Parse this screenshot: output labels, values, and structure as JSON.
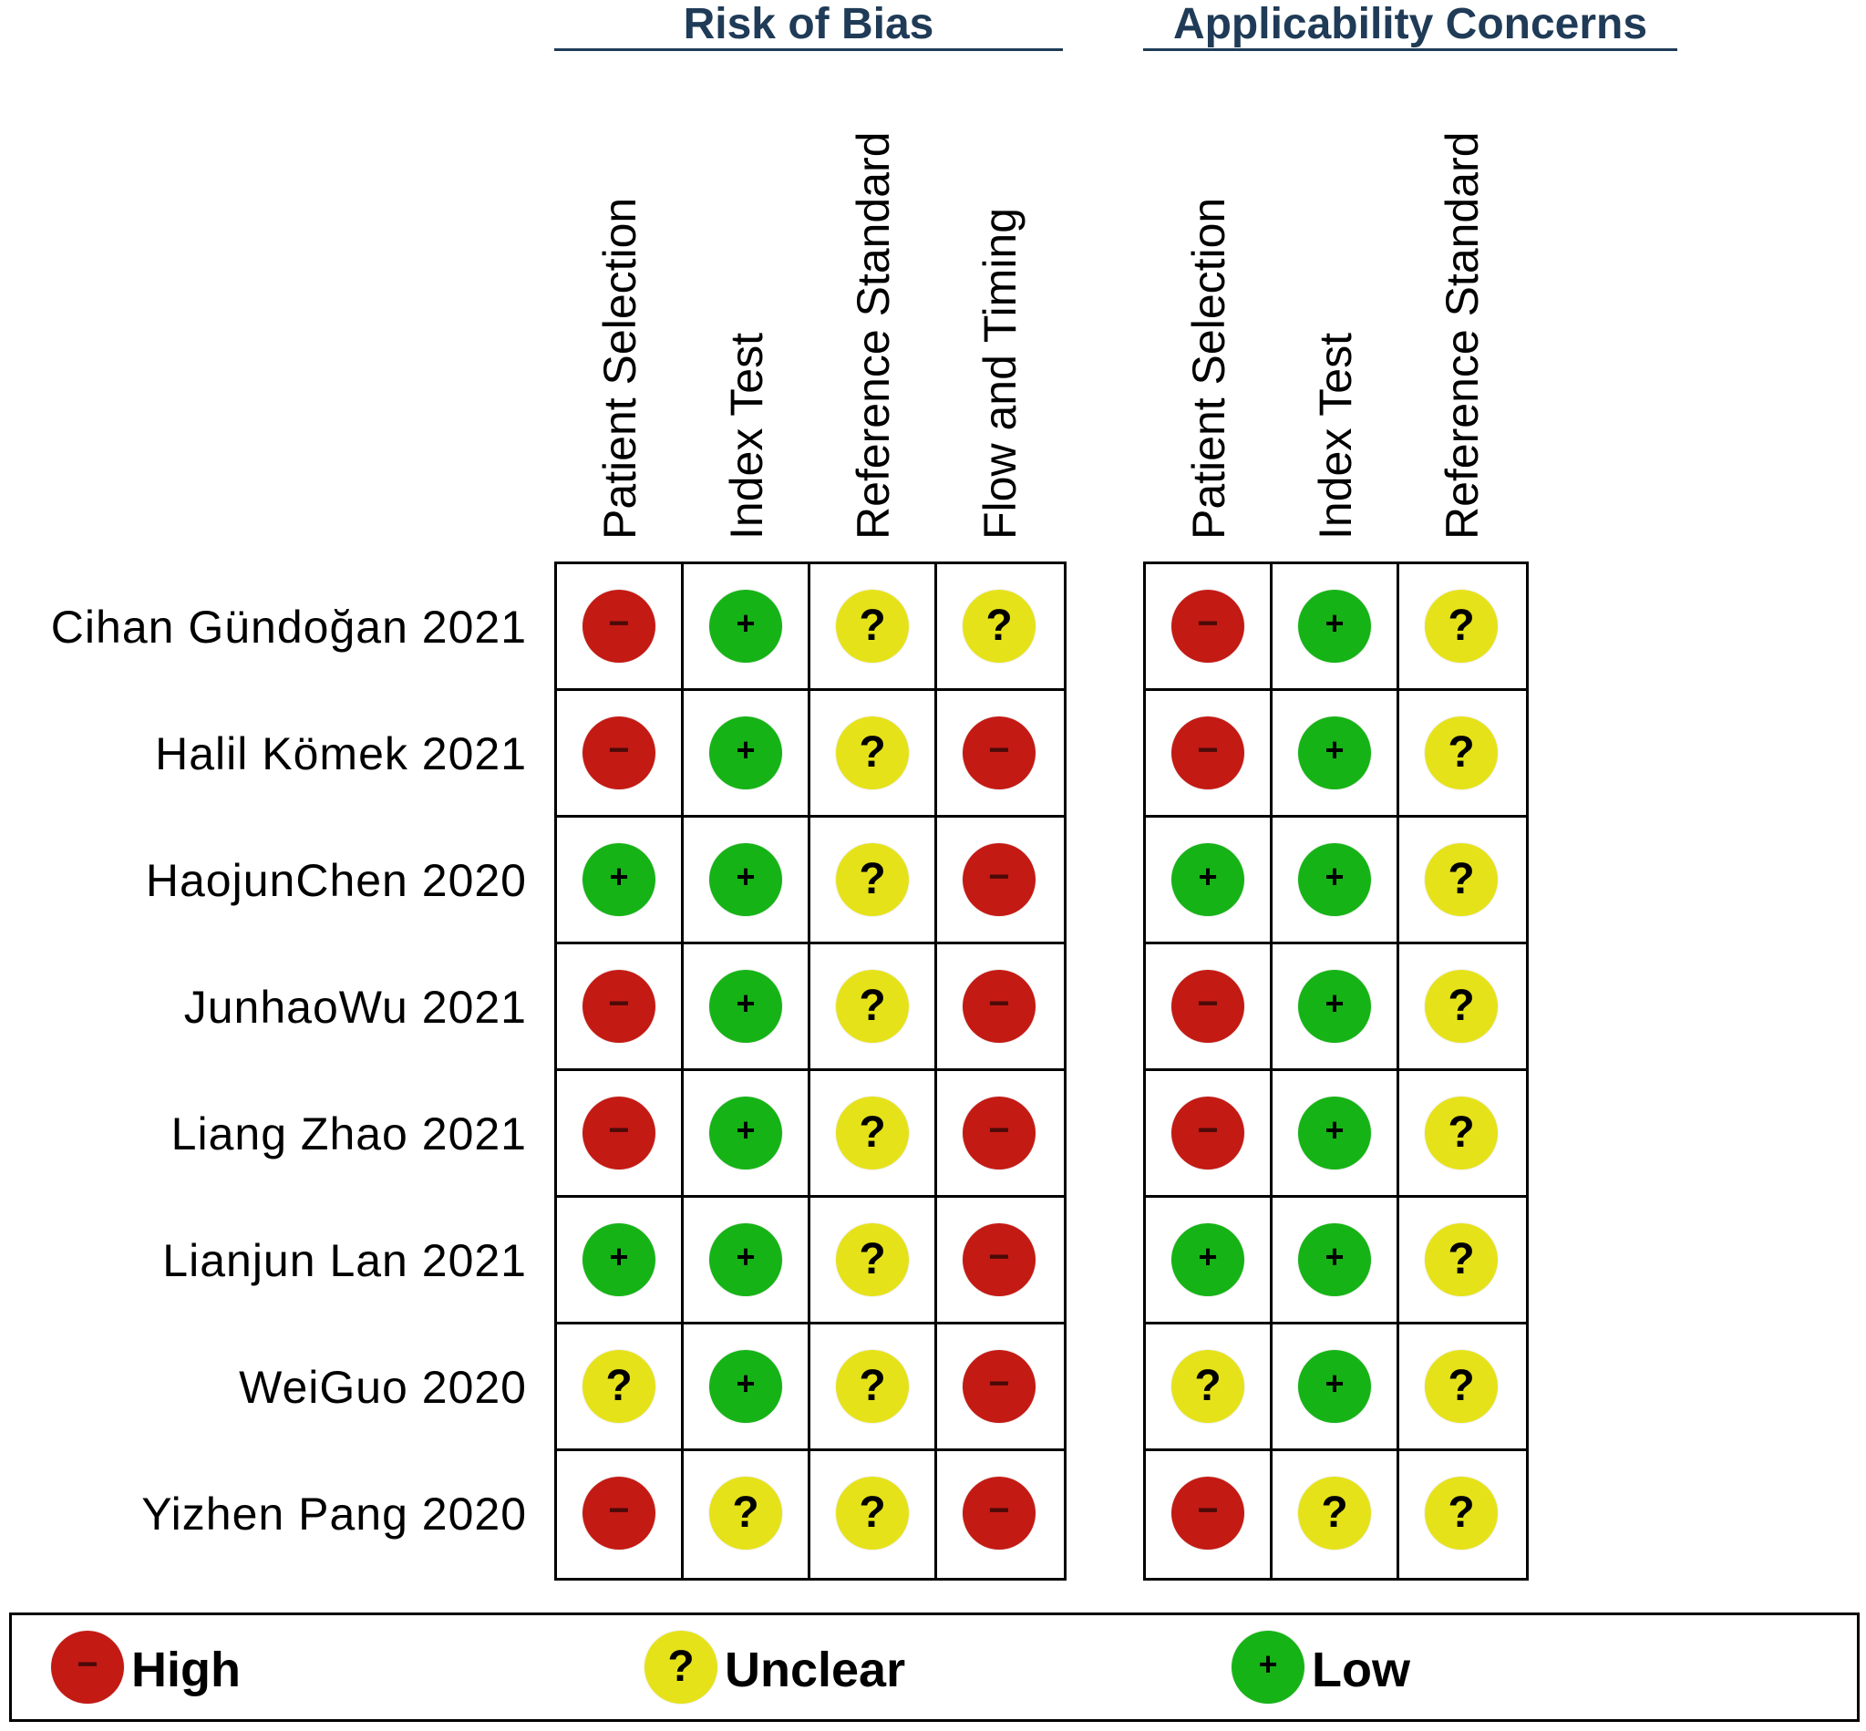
{
  "chart_data": {
    "type": "table",
    "groups": [
      {
        "title": "Risk of Bias",
        "columns": [
          "Patient Selection",
          "Index Test",
          "Reference Standard",
          "Flow and Timing"
        ]
      },
      {
        "title": "Applicability Concerns",
        "columns": [
          "Patient Selection",
          "Index Test",
          "Reference Standard"
        ]
      }
    ],
    "studies": [
      {
        "name": "Cihan Gündoğan 2021",
        "bias": [
          "High",
          "Low",
          "Unclear",
          "Unclear"
        ],
        "applicability": [
          "High",
          "Low",
          "Unclear"
        ]
      },
      {
        "name": "Halil Kömek 2021",
        "bias": [
          "High",
          "Low",
          "Unclear",
          "High"
        ],
        "applicability": [
          "High",
          "Low",
          "Unclear"
        ]
      },
      {
        "name": "HaojunChen 2020",
        "bias": [
          "Low",
          "Low",
          "Unclear",
          "High"
        ],
        "applicability": [
          "Low",
          "Low",
          "Unclear"
        ]
      },
      {
        "name": "JunhaoWu 2021",
        "bias": [
          "High",
          "Low",
          "Unclear",
          "High"
        ],
        "applicability": [
          "High",
          "Low",
          "Unclear"
        ]
      },
      {
        "name": "Liang Zhao 2021",
        "bias": [
          "High",
          "Low",
          "Unclear",
          "High"
        ],
        "applicability": [
          "High",
          "Low",
          "Unclear"
        ]
      },
      {
        "name": "Lianjun Lan 2021",
        "bias": [
          "Low",
          "Low",
          "Unclear",
          "High"
        ],
        "applicability": [
          "Low",
          "Low",
          "Unclear"
        ]
      },
      {
        "name": "WeiGuo 2020",
        "bias": [
          "Unclear",
          "Low",
          "Unclear",
          "High"
        ],
        "applicability": [
          "Unclear",
          "Low",
          "Unclear"
        ]
      },
      {
        "name": "Yizhen Pang 2020",
        "bias": [
          "High",
          "Unclear",
          "Unclear",
          "High"
        ],
        "applicability": [
          "High",
          "Unclear",
          "Unclear"
        ]
      }
    ],
    "legend": [
      {
        "level": "High",
        "label": "High",
        "symbol": "−",
        "color": "#c41a14"
      },
      {
        "level": "Unclear",
        "label": "Unclear",
        "symbol": "?",
        "color": "#e6e21a"
      },
      {
        "level": "Low",
        "label": "Low",
        "symbol": "+",
        "color": "#16b316"
      }
    ]
  }
}
